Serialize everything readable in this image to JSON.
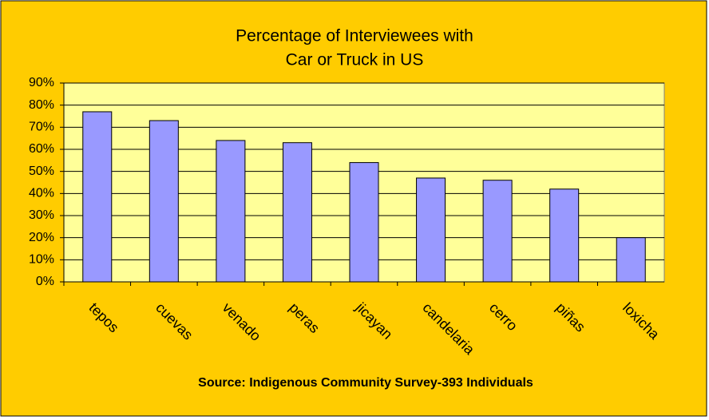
{
  "chart_data": {
    "type": "bar",
    "title": [
      "Percentage of Interviewees with",
      "Car or Truck in US"
    ],
    "source": "Source: Indigenous Community Survey-393 Individuals",
    "categories": [
      "tepos",
      "cuevas",
      "venado",
      "peras",
      "jicayan",
      "candelaria",
      "cerro",
      "piñas",
      "loxicha"
    ],
    "values": [
      77,
      73,
      64,
      63,
      54,
      47,
      46,
      42,
      20
    ],
    "color": "#9999ff",
    "ylim": [
      0,
      90
    ],
    "yticks": [
      {
        "value": 0,
        "label": "0%"
      },
      {
        "value": 10,
        "label": "10%"
      },
      {
        "value": 20,
        "label": "20%"
      },
      {
        "value": 30,
        "label": "30%"
      },
      {
        "value": 40,
        "label": "40%"
      },
      {
        "value": 50,
        "label": "50%"
      },
      {
        "value": 60,
        "label": "60%"
      },
      {
        "value": 70,
        "label": "70%"
      },
      {
        "value": 80,
        "label": "80%"
      },
      {
        "value": 90,
        "label": "90%"
      }
    ],
    "grid": true
  }
}
